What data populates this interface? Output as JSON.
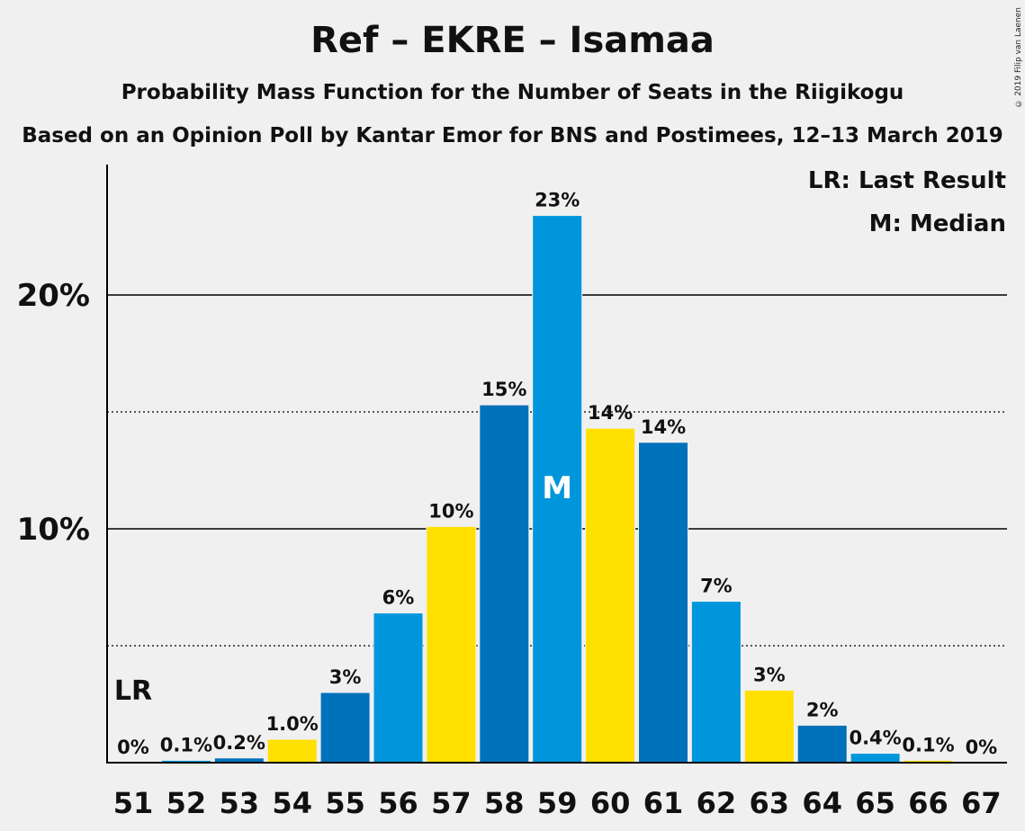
{
  "title": "Ref – EKRE – Isamaa",
  "subtitle": "Probability Mass Function for the Number of Seats in the Riigikogu",
  "subtitle2": "Based on an Opinion Poll by Kantar Emor for BNS and Postimees, 12–13 March 2019",
  "copyright": "© 2019 Filip van Laenen",
  "legend": {
    "last_result": "LR: Last Result",
    "median": "M: Median"
  },
  "colors": {
    "dark_blue": "#0071bb",
    "light_blue": "#0096db",
    "yellow": "#ffe000",
    "background": "#f0f0f0"
  },
  "chart_data": {
    "type": "bar",
    "categories": [
      "51",
      "52",
      "53",
      "54",
      "55",
      "56",
      "57",
      "58",
      "59",
      "60",
      "61",
      "62",
      "63",
      "64",
      "65",
      "66",
      "67"
    ],
    "values": [
      0,
      0.1,
      0.2,
      1.0,
      3.0,
      6.4,
      10.1,
      15.3,
      23.4,
      14.3,
      13.7,
      6.9,
      3.1,
      1.6,
      0.4,
      0.1,
      0
    ],
    "data_labels": [
      "0%",
      "0.1%",
      "0.2%",
      "1.0%",
      "3%",
      "6%",
      "10%",
      "15%",
      "23%",
      "14%",
      "14%",
      "7%",
      "3%",
      "2%",
      "0.4%",
      "0.1%",
      "0%"
    ],
    "bar_colors": [
      "dark_blue",
      "light_blue",
      "dark_blue",
      "yellow",
      "dark_blue",
      "light_blue",
      "yellow",
      "dark_blue",
      "light_blue",
      "yellow",
      "dark_blue",
      "light_blue",
      "yellow",
      "dark_blue",
      "light_blue",
      "yellow",
      "dark_blue"
    ],
    "y_ticks": [
      {
        "value": 10,
        "label": "10%"
      },
      {
        "value": 20,
        "label": "20%"
      }
    ],
    "y_minor_ticks": [
      5,
      15
    ],
    "ylim": [
      0,
      25.5
    ],
    "last_result_seat": "51",
    "last_result_label": "LR",
    "median_seat": "59",
    "median_label": "M"
  }
}
